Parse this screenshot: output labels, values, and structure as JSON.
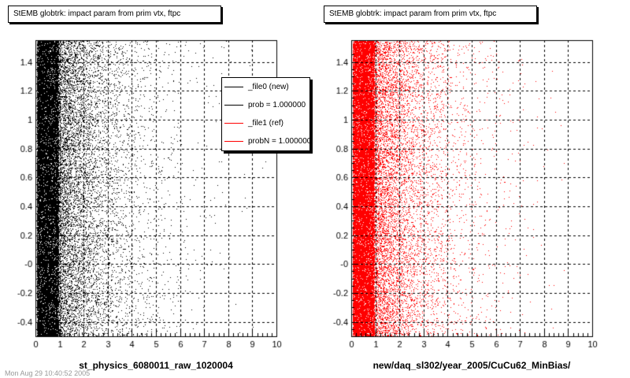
{
  "chart_data": [
    {
      "type": "scatter",
      "title": "StEMB globtrk: impact param from prim vtx, ftpc",
      "xlabel": "st_physics_6080011_raw_1020004",
      "ylabel": "",
      "xlim": [
        0,
        10
      ],
      "ylim": [
        -0.5,
        1.55
      ],
      "x_ticks": [
        "0",
        "1",
        "2",
        "3",
        "4",
        "5",
        "6",
        "7",
        "8",
        "9",
        "10"
      ],
      "y_ticks": [
        "-0.4",
        "-0.2",
        "-0",
        "0.2",
        "0.4",
        "0.6",
        "0.8",
        "1",
        "1.2",
        "1.4"
      ],
      "grid": true,
      "marker_color": "#000000",
      "legend": {
        "placement": "top-right",
        "entries": [
          {
            "label": "_file0 (new)",
            "color": "#000000"
          },
          {
            "label": "prob = 1.000000",
            "color": "#000000"
          },
          {
            "label": "_file1 (ref)",
            "color": "#ff0000"
          },
          {
            "label": "probN = 1.000000",
            "color": "#ff0000"
          }
        ]
      }
    },
    {
      "type": "scatter",
      "title": "StEMB globtrk: impact param from prim vtx, ftpc",
      "xlabel": "new/daq_sl302/year_2005/CuCu62_MinBias/",
      "ylabel": "",
      "xlim": [
        0,
        10
      ],
      "ylim": [
        -0.5,
        1.55
      ],
      "x_ticks": [
        "0",
        "1",
        "2",
        "3",
        "4",
        "5",
        "6",
        "7",
        "8",
        "9",
        "10"
      ],
      "y_ticks": [
        "-0.4",
        "-0.2",
        "-0",
        "0.2",
        "0.4",
        "0.6",
        "0.8",
        "1",
        "1.2",
        "1.4"
      ],
      "grid": true,
      "marker_color": "#ff0000"
    }
  ],
  "footer_text": "Mon Aug 29 10:40:52 2005"
}
